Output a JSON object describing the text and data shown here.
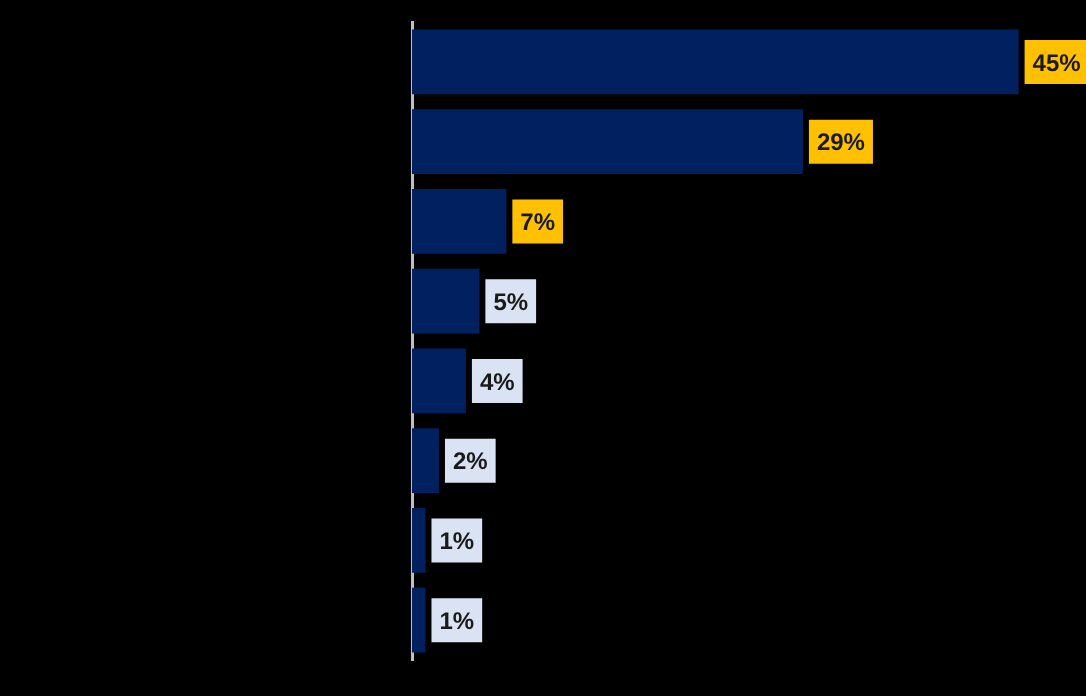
{
  "chart_data": {
    "type": "bar",
    "orientation": "horizontal",
    "categories": [
      null,
      null,
      null,
      null,
      null,
      null,
      null,
      null
    ],
    "values": [
      45,
      29,
      7,
      5,
      4,
      2,
      1,
      1
    ],
    "value_labels": [
      "45%",
      "29%",
      "7%",
      "5%",
      "4%",
      "2%",
      "1%",
      "1%"
    ],
    "color": "#002060",
    "grid": false,
    "legend": false
  }
}
